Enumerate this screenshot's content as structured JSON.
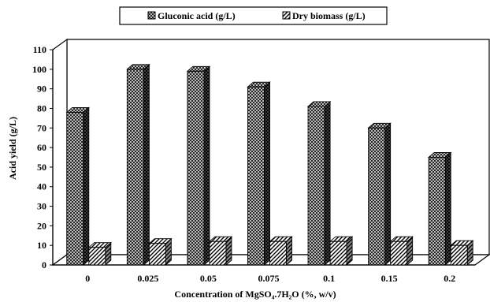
{
  "chart_data": {
    "type": "bar",
    "style": "3d-clustered",
    "categories": [
      "0",
      "0.025",
      "0.05",
      "0.075",
      "0.1",
      "0.15",
      "0.2"
    ],
    "series": [
      {
        "name": "Gluconic acid (g/L)",
        "values": [
          78,
          100,
          99,
          91,
          81,
          70,
          55
        ],
        "pattern": "crosshatch",
        "color": "#222222"
      },
      {
        "name": "Dry biomass (g/L)",
        "values": [
          9,
          11,
          12,
          12,
          12,
          12,
          10
        ],
        "pattern": "diagonal",
        "color": "#222222"
      }
    ],
    "xlabel": "Concentration of MgSO₄.7H₂O (%, w/v)",
    "ylabel": "Acid yield (g/L)",
    "ylim": [
      0,
      110
    ],
    "yticks": [
      "0",
      "10",
      "20",
      "30",
      "40",
      "50",
      "60",
      "70",
      "80",
      "90",
      "100",
      "110"
    ],
    "legend_position": "top-center",
    "grid": false
  }
}
